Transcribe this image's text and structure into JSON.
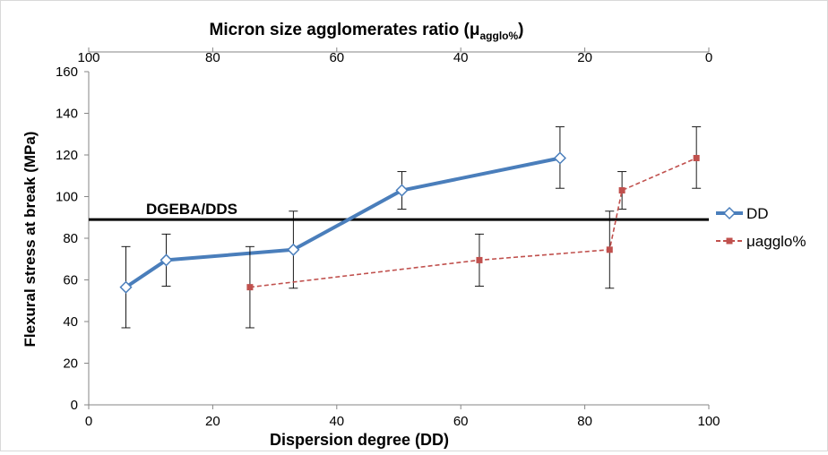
{
  "chart_data": {
    "type": "line",
    "title": "",
    "xlabel": "Dispersion degree (DD)",
    "x2label": {
      "main": "Micron size agglomerates ratio (μ",
      "sub": "agglo%",
      "tail": ")"
    },
    "ylabel": "Flexural stress at break (MPa)",
    "xlim": [
      0,
      100
    ],
    "x2lim": [
      100,
      0
    ],
    "ylim": [
      0,
      160
    ],
    "xticks": [
      "0",
      "20",
      "40",
      "60",
      "80",
      "100"
    ],
    "x2ticks": [
      "100",
      "80",
      "60",
      "40",
      "20",
      "0"
    ],
    "yticks": [
      "0",
      "20",
      "40",
      "60",
      "80",
      "100",
      "120",
      "140",
      "160"
    ],
    "grid": false,
    "legend_position": "right",
    "reference_line": {
      "label": "DGEBA/DDS",
      "y": 89,
      "color": "#000000"
    },
    "series": [
      {
        "name": "DD",
        "axis": "bottom",
        "color": "#4a7ebb",
        "marker": "diamond",
        "points": [
          {
            "x": 6,
            "y": 56.5,
            "err_lo": 37,
            "err_hi": 76
          },
          {
            "x": 12.5,
            "y": 69.5,
            "err_lo": 57,
            "err_hi": 82
          },
          {
            "x": 33,
            "y": 74.5,
            "err_lo": 56,
            "err_hi": 93
          },
          {
            "x": 50.5,
            "y": 103,
            "err_lo": 94,
            "err_hi": 112
          },
          {
            "x": 76,
            "y": 118.5,
            "err_lo": 104,
            "err_hi": 133.5
          }
        ]
      },
      {
        "name": "μagglo%",
        "axis": "top",
        "color": "#c0504d",
        "marker": "square",
        "dashed": true,
        "points": [
          {
            "x": 74,
            "y": 56.5,
            "err_lo": 37,
            "err_hi": 76
          },
          {
            "x": 37,
            "y": 69.5,
            "err_lo": 57,
            "err_hi": 82
          },
          {
            "x": 16,
            "y": 74.5,
            "err_lo": 56,
            "err_hi": 93
          },
          {
            "x": 14,
            "y": 103,
            "err_lo": 94,
            "err_hi": 112
          },
          {
            "x": 2,
            "y": 118.5,
            "err_lo": 104,
            "err_hi": 133.5
          }
        ]
      }
    ]
  }
}
